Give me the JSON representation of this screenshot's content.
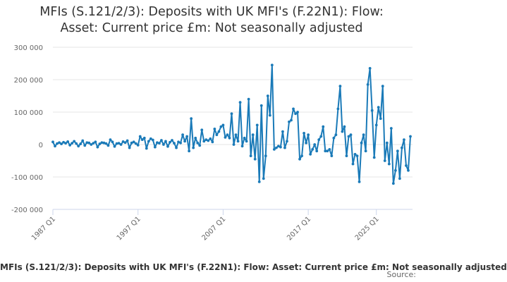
{
  "chart_data": {
    "type": "line",
    "title_line1": "MFIs (S.121/2/3): Deposits with UK MFI's (F.22N1): Flow:",
    "title_line2": "Asset: Current price £m: Not seasonally adjusted",
    "series": [
      {
        "name": "MFIs (S.121/2/3): Deposits with UK MFI's (F.22N1): Flow: Asset: Current price £m: Not seasonally adjusted",
        "color": "#1a7ab8",
        "start": "1987 Q1",
        "frequency": "quarterly",
        "values": [
          8000,
          -5000,
          3000,
          6000,
          2000,
          7000,
          4000,
          9000,
          -2000,
          4000,
          10000,
          3000,
          -5000,
          2000,
          12000,
          -3000,
          6000,
          5000,
          0,
          4000,
          8000,
          -8000,
          2000,
          6000,
          5000,
          3000,
          -3000,
          15000,
          8000,
          -6000,
          3000,
          4000,
          0,
          9000,
          6000,
          12000,
          -10000,
          5000,
          8000,
          3000,
          -2000,
          25000,
          15000,
          20000,
          -12000,
          10000,
          18000,
          14000,
          -8000,
          6000,
          4000,
          13000,
          0,
          10000,
          -6000,
          7000,
          13000,
          4000,
          -10000,
          8000,
          5000,
          30000,
          10000,
          25000,
          -20000,
          80000,
          -10000,
          20000,
          5000,
          -3000,
          45000,
          10000,
          15000,
          12000,
          18000,
          8000,
          48000,
          30000,
          40000,
          55000,
          60000,
          22000,
          30000,
          20000,
          95000,
          0,
          30000,
          10000,
          130000,
          -5000,
          20000,
          10000,
          140000,
          -35000,
          30000,
          -45000,
          60000,
          -115000,
          120000,
          -105000,
          -35000,
          150000,
          90000,
          245000,
          -15000,
          -10000,
          -5000,
          -8000,
          40000,
          -10000,
          10000,
          70000,
          75000,
          110000,
          95000,
          100000,
          -45000,
          -35000,
          35000,
          5000,
          30000,
          -30000,
          -15000,
          0,
          -20000,
          15000,
          25000,
          55000,
          -20000,
          -20000,
          -15000,
          -35000,
          20000,
          30000,
          110000,
          180000,
          40000,
          55000,
          -35000,
          25000,
          30000,
          -60000,
          -30000,
          -35000,
          -115000,
          5000,
          30000,
          -20000,
          185000,
          235000,
          105000,
          -40000,
          60000,
          115000,
          80000,
          180000,
          -50000,
          5000,
          -60000,
          50000,
          -120000,
          -80000,
          -20000,
          -105000,
          -10000,
          15000,
          -65000,
          -80000,
          25000
        ]
      }
    ],
    "x_tick_labels": [
      "1987 Q1",
      "1997 Q1",
      "2007 Q1",
      "2017 Q1",
      "2025 Q1"
    ],
    "y_tick_labels": [
      "300 000",
      "200 000",
      "100 000",
      "0",
      "-100 000",
      "-200 000"
    ],
    "y_ticks": [
      300000,
      200000,
      100000,
      0,
      -100000,
      -200000
    ],
    "ylim": [
      -200000,
      300000
    ],
    "xlabel": "",
    "ylabel": "",
    "grid": "horizontal",
    "legend_position": "bottom",
    "credits_text": "Source:"
  }
}
